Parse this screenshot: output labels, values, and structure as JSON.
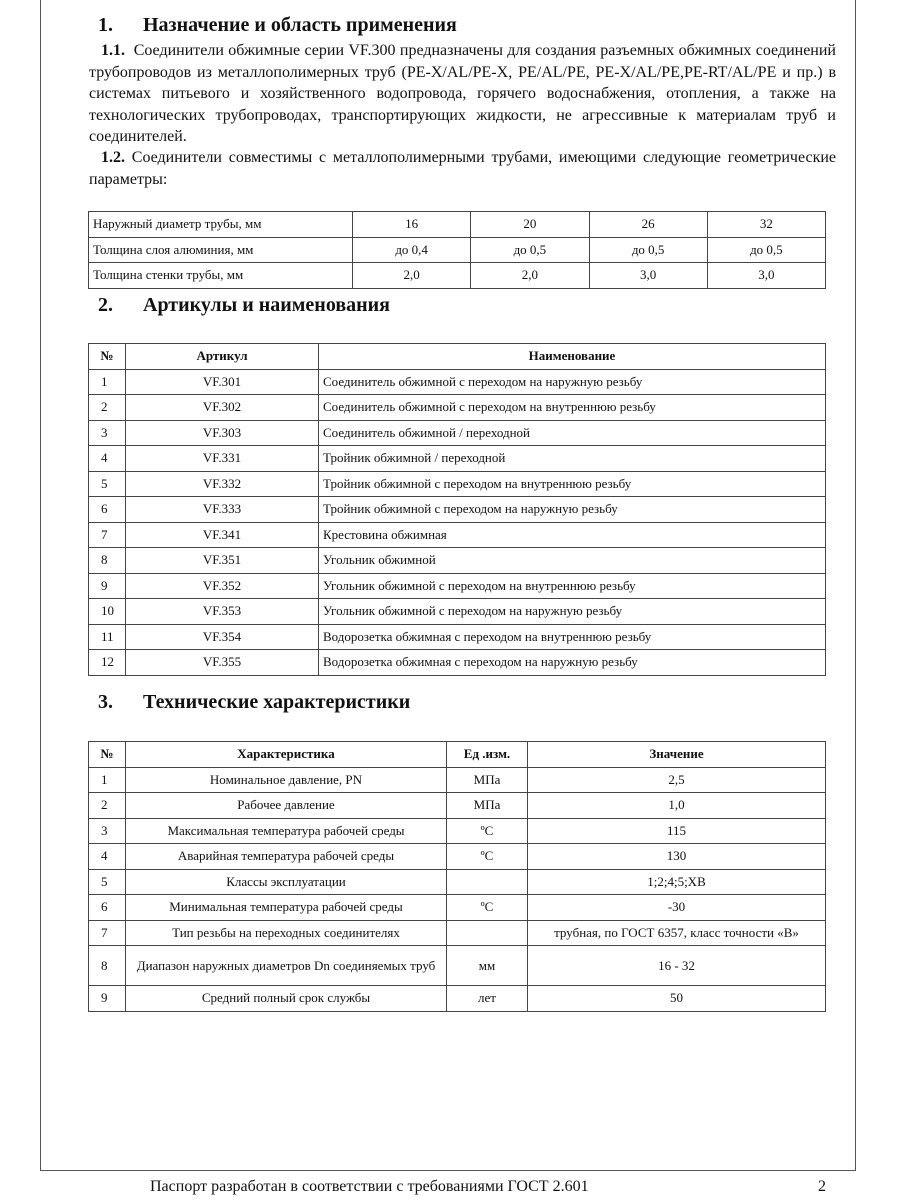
{
  "section1": {
    "num": "1.",
    "title": "Назначение и область применения",
    "p1_num": "1.1.",
    "p1": "Соединители обжимные серии VF.300 предназначены для создания разъемных обжимных соединений трубопроводов из металлополимерных труб (PE-X/AL/PE-X, PE/AL/PE, PE-X/AL/PE,PE-RT/AL/PE и пр.) в системах питьевого и хозяйственного водопровода, горячего водоснабжения, отопления, а также на технологических трубопроводах, транспортирующих жидкости, не агрессивные к материалам труб и соединителей.",
    "p2_num": "1.2.",
    "p2": "Соединители совместимы с металлополимерными трубами, имеющими следующие геометрические параметры:"
  },
  "pipe_table": [
    [
      "Наружный диаметр трубы, мм",
      "16",
      "20",
      "26",
      "32"
    ],
    [
      "Толщина слоя алюминия, мм",
      "до 0,4",
      "до 0,5",
      "до 0,5",
      "до 0,5"
    ],
    [
      "Толщина стенки трубы, мм",
      "2,0",
      "2,0",
      "3,0",
      "3,0"
    ]
  ],
  "section2": {
    "num": "2.",
    "title": "Артикулы и наименования"
  },
  "articles": {
    "headers": [
      "№",
      "Артикул",
      "Наименование"
    ],
    "rows": [
      [
        "1",
        "VF.301",
        "Соединитель обжимной с переходом на наружную резьбу"
      ],
      [
        "2",
        "VF.302",
        "Соединитель обжимной с переходом на внутреннюю резьбу"
      ],
      [
        "3",
        "VF.303",
        "Соединитель обжимной / переходной"
      ],
      [
        "4",
        "VF.331",
        "Тройник обжимной / переходной"
      ],
      [
        "5",
        "VF.332",
        "Тройник обжимной с переходом на внутреннюю резьбу"
      ],
      [
        "6",
        "VF.333",
        "Тройник обжимной с переходом на наружную резьбу"
      ],
      [
        "7",
        "VF.341",
        "Крестовина обжимная"
      ],
      [
        "8",
        "VF.351",
        "Угольник обжимной"
      ],
      [
        "9",
        "VF.352",
        "Угольник обжимной с переходом на внутреннюю резьбу"
      ],
      [
        "10",
        "VF.353",
        "Угольник обжимной с переходом на наружную резьбу"
      ],
      [
        "11",
        "VF.354",
        "Водорозетка обжимная с переходом на внутреннюю резьбу"
      ],
      [
        "12",
        "VF.355",
        "Водорозетка обжимная с переходом на наружную резьбу"
      ]
    ]
  },
  "section3": {
    "num": "3.",
    "title": "Технические характеристики"
  },
  "specs": {
    "headers": [
      "№",
      "Характеристика",
      "Ед .изм.",
      "Значение"
    ],
    "rows": [
      [
        "1",
        "Номинальное давление, PN",
        "МПа",
        "2,5"
      ],
      [
        "2",
        "Рабочее давление",
        "МПа",
        "1,0"
      ],
      [
        "3",
        "Максимальная температура рабочей среды",
        "ºC",
        "115"
      ],
      [
        "4",
        "Аварийная температура рабочей среды",
        "ºC",
        "130"
      ],
      [
        "5",
        "Классы эксплуатации",
        "",
        "1;2;4;5;XB"
      ],
      [
        "6",
        "Минимальная температура рабочей среды",
        "ºC",
        "-30"
      ],
      [
        "7",
        "Тип резьбы на переходных соединителях",
        "",
        "трубная, по ГОСТ 6357, класс точности «В»"
      ],
      [
        "8",
        "Диапазон наружных диаметров Dn соединяемых труб",
        "мм",
        "16 - 32"
      ],
      [
        "9",
        "Средний полный срок службы",
        "лет",
        "50"
      ]
    ]
  },
  "footer": {
    "text": "Паспорт разработан в соответствии с требованиями ГОСТ 2.601",
    "page": "2"
  }
}
